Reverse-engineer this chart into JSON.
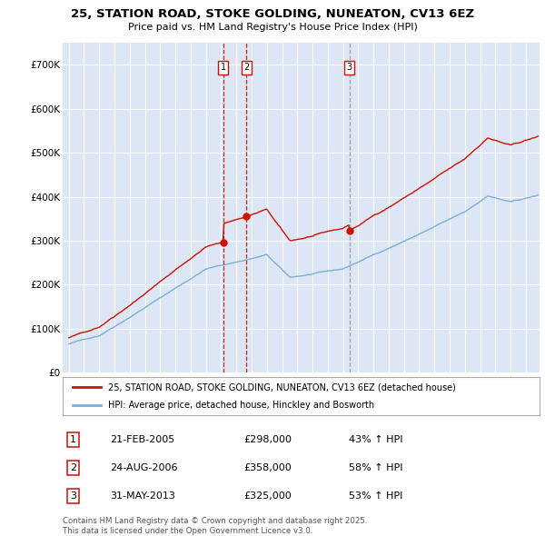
{
  "title_line1": "25, STATION ROAD, STOKE GOLDING, NUNEATON, CV13 6EZ",
  "title_line2": "Price paid vs. HM Land Registry's House Price Index (HPI)",
  "background_color": "#ffffff",
  "plot_bg_color": "#dce6f5",
  "grid_color": "#ffffff",
  "red_color": "#cc1100",
  "blue_color": "#7bafd4",
  "red_label": "25, STATION ROAD, STOKE GOLDING, NUNEATON, CV13 6EZ (detached house)",
  "blue_label": "HPI: Average price, detached house, Hinckley and Bosworth",
  "transactions": [
    {
      "num": 1,
      "date": "21-FEB-2005",
      "price": "£298,000",
      "hpi_text": "43% ↑ HPI",
      "year": 2005.13,
      "price_val": 298000,
      "vline_color": "#cc1100",
      "vline_style": "--"
    },
    {
      "num": 2,
      "date": "24-AUG-2006",
      "price": "£358,000",
      "hpi_text": "58% ↑ HPI",
      "year": 2006.65,
      "price_val": 358000,
      "vline_color": "#cc1100",
      "vline_style": "--"
    },
    {
      "num": 3,
      "date": "31-MAY-2013",
      "price": "£325,000",
      "hpi_text": "53% ↑ HPI",
      "year": 2013.42,
      "price_val": 325000,
      "vline_color": "#999999",
      "vline_style": "--"
    }
  ],
  "footnote": "Contains HM Land Registry data © Crown copyright and database right 2025.\nThis data is licensed under the Open Government Licence v3.0.",
  "ylim": [
    0,
    750000
  ],
  "yticks": [
    0,
    100000,
    200000,
    300000,
    400000,
    500000,
    600000,
    700000
  ],
  "ytick_labels": [
    "£0",
    "£100K",
    "£200K",
    "£300K",
    "£400K",
    "£500K",
    "£600K",
    "£700K"
  ],
  "xstart": 1995,
  "xend": 2025,
  "figsize": [
    6.0,
    5.9
  ],
  "dpi": 100
}
